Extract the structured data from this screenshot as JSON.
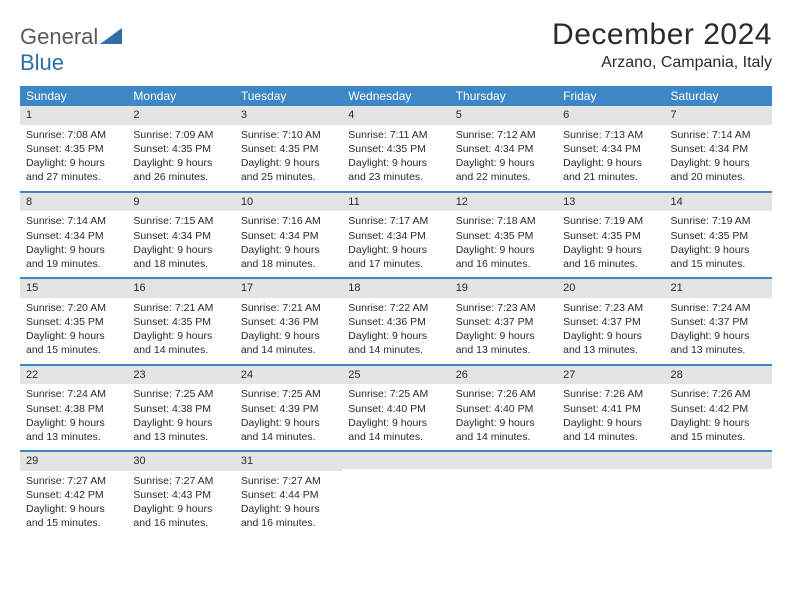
{
  "logo": {
    "text1": "General",
    "text2": "Blue"
  },
  "title": "December 2024",
  "location": "Arzano, Campania, Italy",
  "colors": {
    "header_bg": "#3d87c7",
    "header_text": "#ffffff",
    "daynum_bg": "#e4e4e4",
    "week_border": "#3d87c7",
    "text": "#2b2b2b",
    "logo_gray": "#5a5a5a",
    "logo_blue": "#2f6fa8"
  },
  "weekdays": [
    "Sunday",
    "Monday",
    "Tuesday",
    "Wednesday",
    "Thursday",
    "Friday",
    "Saturday"
  ],
  "weeks": [
    [
      {
        "n": "1",
        "sr": "7:08 AM",
        "ss": "4:35 PM",
        "dl": "9 hours and 27 minutes."
      },
      {
        "n": "2",
        "sr": "7:09 AM",
        "ss": "4:35 PM",
        "dl": "9 hours and 26 minutes."
      },
      {
        "n": "3",
        "sr": "7:10 AM",
        "ss": "4:35 PM",
        "dl": "9 hours and 25 minutes."
      },
      {
        "n": "4",
        "sr": "7:11 AM",
        "ss": "4:35 PM",
        "dl": "9 hours and 23 minutes."
      },
      {
        "n": "5",
        "sr": "7:12 AM",
        "ss": "4:34 PM",
        "dl": "9 hours and 22 minutes."
      },
      {
        "n": "6",
        "sr": "7:13 AM",
        "ss": "4:34 PM",
        "dl": "9 hours and 21 minutes."
      },
      {
        "n": "7",
        "sr": "7:14 AM",
        "ss": "4:34 PM",
        "dl": "9 hours and 20 minutes."
      }
    ],
    [
      {
        "n": "8",
        "sr": "7:14 AM",
        "ss": "4:34 PM",
        "dl": "9 hours and 19 minutes."
      },
      {
        "n": "9",
        "sr": "7:15 AM",
        "ss": "4:34 PM",
        "dl": "9 hours and 18 minutes."
      },
      {
        "n": "10",
        "sr": "7:16 AM",
        "ss": "4:34 PM",
        "dl": "9 hours and 18 minutes."
      },
      {
        "n": "11",
        "sr": "7:17 AM",
        "ss": "4:34 PM",
        "dl": "9 hours and 17 minutes."
      },
      {
        "n": "12",
        "sr": "7:18 AM",
        "ss": "4:35 PM",
        "dl": "9 hours and 16 minutes."
      },
      {
        "n": "13",
        "sr": "7:19 AM",
        "ss": "4:35 PM",
        "dl": "9 hours and 16 minutes."
      },
      {
        "n": "14",
        "sr": "7:19 AM",
        "ss": "4:35 PM",
        "dl": "9 hours and 15 minutes."
      }
    ],
    [
      {
        "n": "15",
        "sr": "7:20 AM",
        "ss": "4:35 PM",
        "dl": "9 hours and 15 minutes."
      },
      {
        "n": "16",
        "sr": "7:21 AM",
        "ss": "4:35 PM",
        "dl": "9 hours and 14 minutes."
      },
      {
        "n": "17",
        "sr": "7:21 AM",
        "ss": "4:36 PM",
        "dl": "9 hours and 14 minutes."
      },
      {
        "n": "18",
        "sr": "7:22 AM",
        "ss": "4:36 PM",
        "dl": "9 hours and 14 minutes."
      },
      {
        "n": "19",
        "sr": "7:23 AM",
        "ss": "4:37 PM",
        "dl": "9 hours and 13 minutes."
      },
      {
        "n": "20",
        "sr": "7:23 AM",
        "ss": "4:37 PM",
        "dl": "9 hours and 13 minutes."
      },
      {
        "n": "21",
        "sr": "7:24 AM",
        "ss": "4:37 PM",
        "dl": "9 hours and 13 minutes."
      }
    ],
    [
      {
        "n": "22",
        "sr": "7:24 AM",
        "ss": "4:38 PM",
        "dl": "9 hours and 13 minutes."
      },
      {
        "n": "23",
        "sr": "7:25 AM",
        "ss": "4:38 PM",
        "dl": "9 hours and 13 minutes."
      },
      {
        "n": "24",
        "sr": "7:25 AM",
        "ss": "4:39 PM",
        "dl": "9 hours and 14 minutes."
      },
      {
        "n": "25",
        "sr": "7:25 AM",
        "ss": "4:40 PM",
        "dl": "9 hours and 14 minutes."
      },
      {
        "n": "26",
        "sr": "7:26 AM",
        "ss": "4:40 PM",
        "dl": "9 hours and 14 minutes."
      },
      {
        "n": "27",
        "sr": "7:26 AM",
        "ss": "4:41 PM",
        "dl": "9 hours and 14 minutes."
      },
      {
        "n": "28",
        "sr": "7:26 AM",
        "ss": "4:42 PM",
        "dl": "9 hours and 15 minutes."
      }
    ],
    [
      {
        "n": "29",
        "sr": "7:27 AM",
        "ss": "4:42 PM",
        "dl": "9 hours and 15 minutes."
      },
      {
        "n": "30",
        "sr": "7:27 AM",
        "ss": "4:43 PM",
        "dl": "9 hours and 16 minutes."
      },
      {
        "n": "31",
        "sr": "7:27 AM",
        "ss": "4:44 PM",
        "dl": "9 hours and 16 minutes."
      },
      {
        "empty": true
      },
      {
        "empty": true
      },
      {
        "empty": true
      },
      {
        "empty": true
      }
    ]
  ],
  "labels": {
    "sunrise": "Sunrise:",
    "sunset": "Sunset:",
    "daylight": "Daylight:"
  }
}
